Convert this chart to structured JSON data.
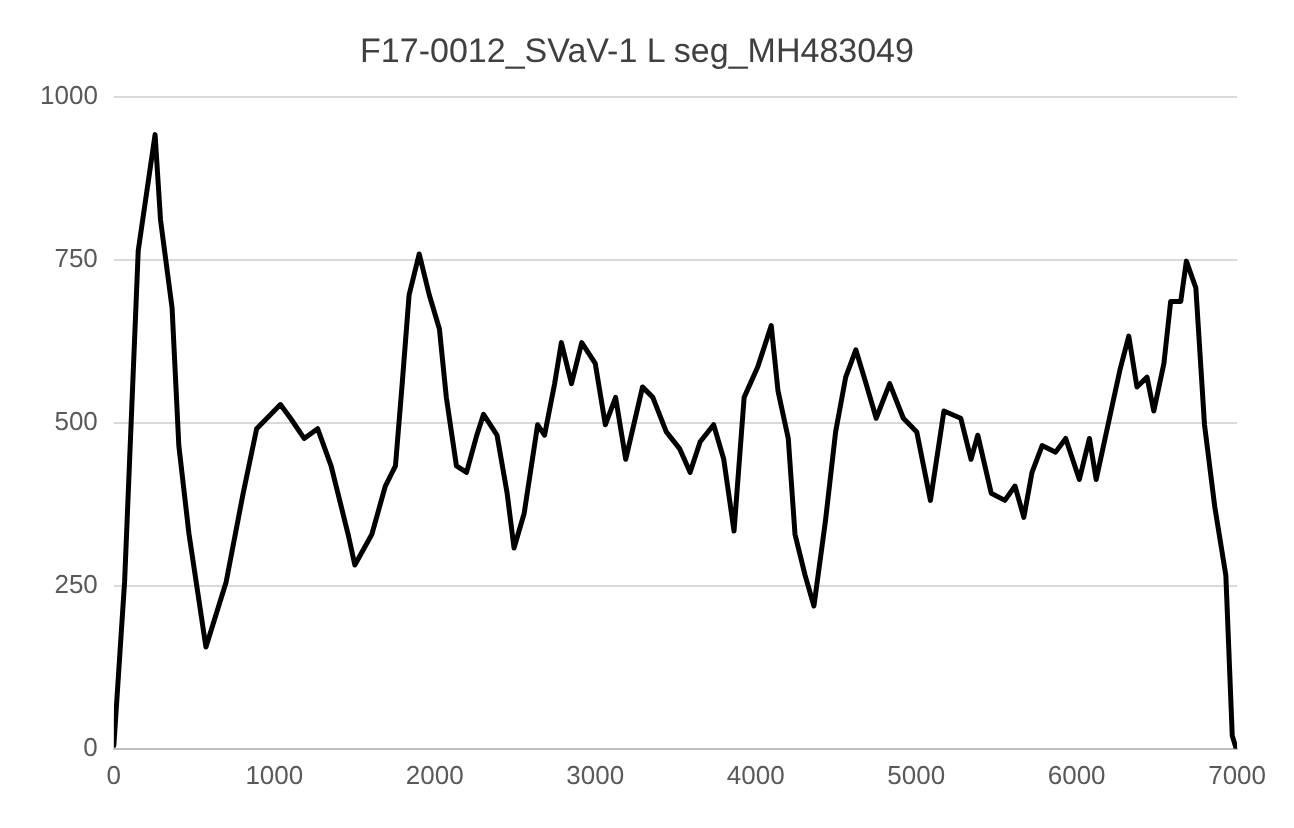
{
  "chart_data": {
    "type": "line",
    "title": "F17-0012_SVaV-1 L seg_MH483049",
    "series": [
      {
        "color": "#000000",
        "x": [
          0,
          67,
          152,
          257,
          291,
          363,
          405,
          468,
          574,
          700,
          806,
          890,
          1038,
          1101,
          1186,
          1270,
          1354,
          1460,
          1502,
          1608,
          1692,
          1755,
          1797,
          1840,
          1903,
          1966,
          2029,
          2072,
          2135,
          2198,
          2262,
          2304,
          2388,
          2451,
          2494,
          2557,
          2641,
          2684,
          2747,
          2789,
          2852,
          2916,
          3000,
          3063,
          3127,
          3190,
          3295,
          3359,
          3443,
          3527,
          3591,
          3654,
          3738,
          3801,
          3865,
          3928,
          4013,
          4097,
          4139,
          4203,
          4245,
          4308,
          4363,
          4435,
          4498,
          4561,
          4624,
          4688,
          4751,
          4835,
          4920,
          5004,
          5089,
          5173,
          5278,
          5342,
          5384,
          5468,
          5553,
          5616,
          5671,
          5722,
          5785,
          5869,
          5932,
          6017,
          6080,
          6122,
          6186,
          6270,
          6325,
          6376,
          6439,
          6481,
          6544,
          6586,
          6649,
          6684,
          6743,
          6797,
          6861,
          6930,
          6970,
          6995
        ],
        "values": [
          5,
          256,
          764,
          942,
          811,
          676,
          465,
          330,
          156,
          256,
          392,
          491,
          528,
          507,
          476,
          491,
          434,
          329,
          282,
          329,
          403,
          434,
          560,
          696,
          759,
          696,
          644,
          539,
          434,
          424,
          481,
          513,
          481,
          392,
          308,
          361,
          497,
          481,
          560,
          623,
          560,
          623,
          591,
          497,
          539,
          444,
          555,
          539,
          486,
          460,
          424,
          471,
          497,
          444,
          334,
          539,
          586,
          649,
          549,
          476,
          329,
          266,
          219,
          350,
          486,
          570,
          612,
          560,
          507,
          560,
          507,
          486,
          381,
          518,
          507,
          444,
          481,
          392,
          381,
          403,
          355,
          424,
          465,
          455,
          476,
          413,
          476,
          413,
          486,
          581,
          633,
          555,
          570,
          518,
          591,
          686,
          686,
          748,
          707,
          497,
          371,
          266,
          20,
          0
        ]
      }
    ],
    "xlim": [
      0,
      7000
    ],
    "xticks": [
      0,
      1000,
      2000,
      3000,
      4000,
      5000,
      6000,
      7000
    ],
    "ylim": [
      0,
      1000
    ],
    "yticks": [
      0,
      250,
      500,
      750,
      1000
    ],
    "grid": "y",
    "marker": "none",
    "line_style": "solid",
    "legend": false
  }
}
